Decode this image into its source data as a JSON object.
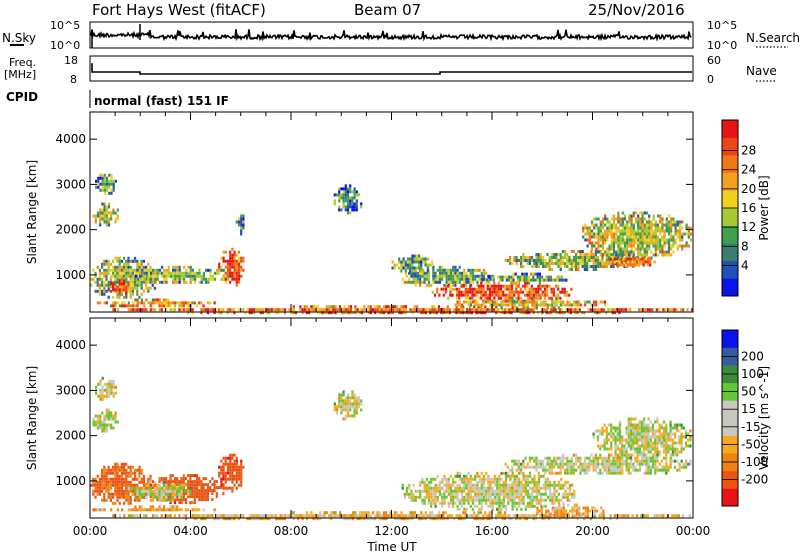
{
  "header": {
    "title": "Fort Hays West (fitACF)",
    "beam": "Beam 07",
    "date": "25/Nov/2016"
  },
  "noise_panel": {
    "left_label": "N.Sky",
    "right_label": "N.Search",
    "left_ticks": [
      "10^5",
      "10^0"
    ],
    "right_ticks": [
      "10^5",
      "10^0"
    ]
  },
  "freq_panel": {
    "left_label_1": "Freq.",
    "left_label_2": "[MHz]",
    "right_label": "Nave",
    "left_ticks": [
      "18",
      "8"
    ],
    "right_ticks": [
      "60",
      "0"
    ]
  },
  "cpid_panel": {
    "label": "CPID",
    "mode_text": "normal (fast) 151 IF"
  },
  "x_axis": {
    "label": "Time UT",
    "ticks": [
      "00:00",
      "04:00",
      "08:00",
      "12:00",
      "16:00",
      "20:00",
      "00:00"
    ]
  },
  "colors": {
    "power_scale": [
      "#0a14e6",
      "#2050b4",
      "#3a7f6e",
      "#3fa050",
      "#a8c832",
      "#f0d21e",
      "#f5a01e",
      "#f07814",
      "#eb4614",
      "#e61414"
    ],
    "velocity_scale": [
      "#e61414",
      "#eb5514",
      "#f08214",
      "#f5aa1e",
      "#c8c8c0",
      "#c8c8c0",
      "#64c832",
      "#3a8c3c",
      "#3a5aa0",
      "#0a14e6"
    ]
  },
  "chart_data": [
    {
      "type": "heatmap",
      "name": "power",
      "ylabel": "Slant Range [km]",
      "yticks": [
        1000,
        2000,
        3000,
        4000
      ],
      "ylim": [
        180,
        4600
      ],
      "xlim": [
        0,
        24
      ],
      "colorbar_label": "Power [dB]",
      "colorbar_ticks": [
        4,
        8,
        12,
        16,
        20,
        24,
        28
      ],
      "colorbar_range": [
        0,
        32
      ],
      "regions": [
        {
          "t0": 0.1,
          "t1": 1.1,
          "r0": 2100,
          "r1": 2600,
          "v": 16
        },
        {
          "t0": 0.2,
          "t1": 1.0,
          "r0": 2800,
          "r1": 3300,
          "v": 10
        },
        {
          "t0": 0.0,
          "t1": 2.6,
          "r0": 500,
          "r1": 1400,
          "v": 14
        },
        {
          "t0": 0.7,
          "t1": 1.6,
          "r0": 600,
          "r1": 900,
          "v": 26
        },
        {
          "t0": 0.1,
          "t1": 5.0,
          "r0": 320,
          "r1": 480,
          "v": 20
        },
        {
          "t0": 1.6,
          "t1": 5.6,
          "r0": 850,
          "r1": 1200,
          "v": 12
        },
        {
          "t0": 5.1,
          "t1": 6.1,
          "r0": 800,
          "r1": 1600,
          "v": 27
        },
        {
          "t0": 0.8,
          "t1": 24.0,
          "r0": 180,
          "r1": 330,
          "v": 24
        },
        {
          "t0": 5.8,
          "t1": 6.1,
          "r0": 1900,
          "r1": 2400,
          "v": 10
        },
        {
          "t0": 9.7,
          "t1": 10.8,
          "r0": 2400,
          "r1": 3000,
          "v": 8
        },
        {
          "t0": 12.4,
          "t1": 16.0,
          "r0": 750,
          "r1": 1200,
          "v": 12
        },
        {
          "t0": 13.6,
          "t1": 19.2,
          "r0": 450,
          "r1": 850,
          "v": 27
        },
        {
          "t0": 14.5,
          "t1": 20.5,
          "r0": 300,
          "r1": 500,
          "v": 18
        },
        {
          "t0": 15.5,
          "t1": 19.0,
          "r0": 850,
          "r1": 1050,
          "v": 12
        },
        {
          "t0": 16.5,
          "t1": 22.0,
          "r0": 1150,
          "r1": 1550,
          "v": 14
        },
        {
          "t0": 19.5,
          "t1": 23.9,
          "r0": 1400,
          "r1": 2400,
          "v": 16
        },
        {
          "t0": 20.5,
          "t1": 22.6,
          "r0": 1200,
          "r1": 1450,
          "v": 24
        },
        {
          "t0": 12.0,
          "t1": 13.6,
          "r0": 1050,
          "r1": 1450,
          "v": 10
        }
      ]
    },
    {
      "type": "heatmap",
      "name": "velocity",
      "ylabel": "Slant Range [km]",
      "yticks": [
        1000,
        2000,
        3000,
        4000
      ],
      "ylim": [
        180,
        4600
      ],
      "xlim": [
        0,
        24
      ],
      "colorbar_label": "Velocity [m s^-1]",
      "colorbar_ticks": [
        -200,
        -100,
        -50,
        -15,
        15,
        50,
        100,
        200
      ],
      "colorbar_range": [
        -250,
        250
      ],
      "regions": [
        {
          "t0": 0.1,
          "t1": 1.1,
          "r0": 2100,
          "r1": 2600,
          "v": 0
        },
        {
          "t0": 0.2,
          "t1": 1.0,
          "r0": 2800,
          "r1": 3300,
          "v": 0
        },
        {
          "t0": 0.0,
          "t1": 2.4,
          "r0": 500,
          "r1": 1400,
          "v": -120
        },
        {
          "t0": 2.2,
          "t1": 5.3,
          "r0": 550,
          "r1": 1150,
          "v": -150
        },
        {
          "t0": 1.5,
          "t1": 4.0,
          "r0": 600,
          "r1": 1000,
          "v": 0
        },
        {
          "t0": 5.1,
          "t1": 6.1,
          "r0": 800,
          "r1": 1600,
          "v": -170
        },
        {
          "t0": 0.1,
          "t1": 5.0,
          "r0": 330,
          "r1": 460,
          "v": -45
        },
        {
          "t0": 0.8,
          "t1": 24.0,
          "r0": 180,
          "r1": 330,
          "v": -30
        },
        {
          "t0": 12.4,
          "t1": 19.4,
          "r0": 400,
          "r1": 1200,
          "v": 0
        },
        {
          "t0": 16.5,
          "t1": 23.9,
          "r0": 1150,
          "r1": 1600,
          "v": 0
        },
        {
          "t0": 20.0,
          "t1": 23.9,
          "r0": 1500,
          "r1": 2400,
          "v": 0
        },
        {
          "t0": 9.7,
          "t1": 10.8,
          "r0": 2400,
          "r1": 3000,
          "v": 0
        },
        {
          "t0": 17.5,
          "t1": 20.5,
          "r0": 200,
          "r1": 500,
          "v": -40
        }
      ]
    }
  ]
}
